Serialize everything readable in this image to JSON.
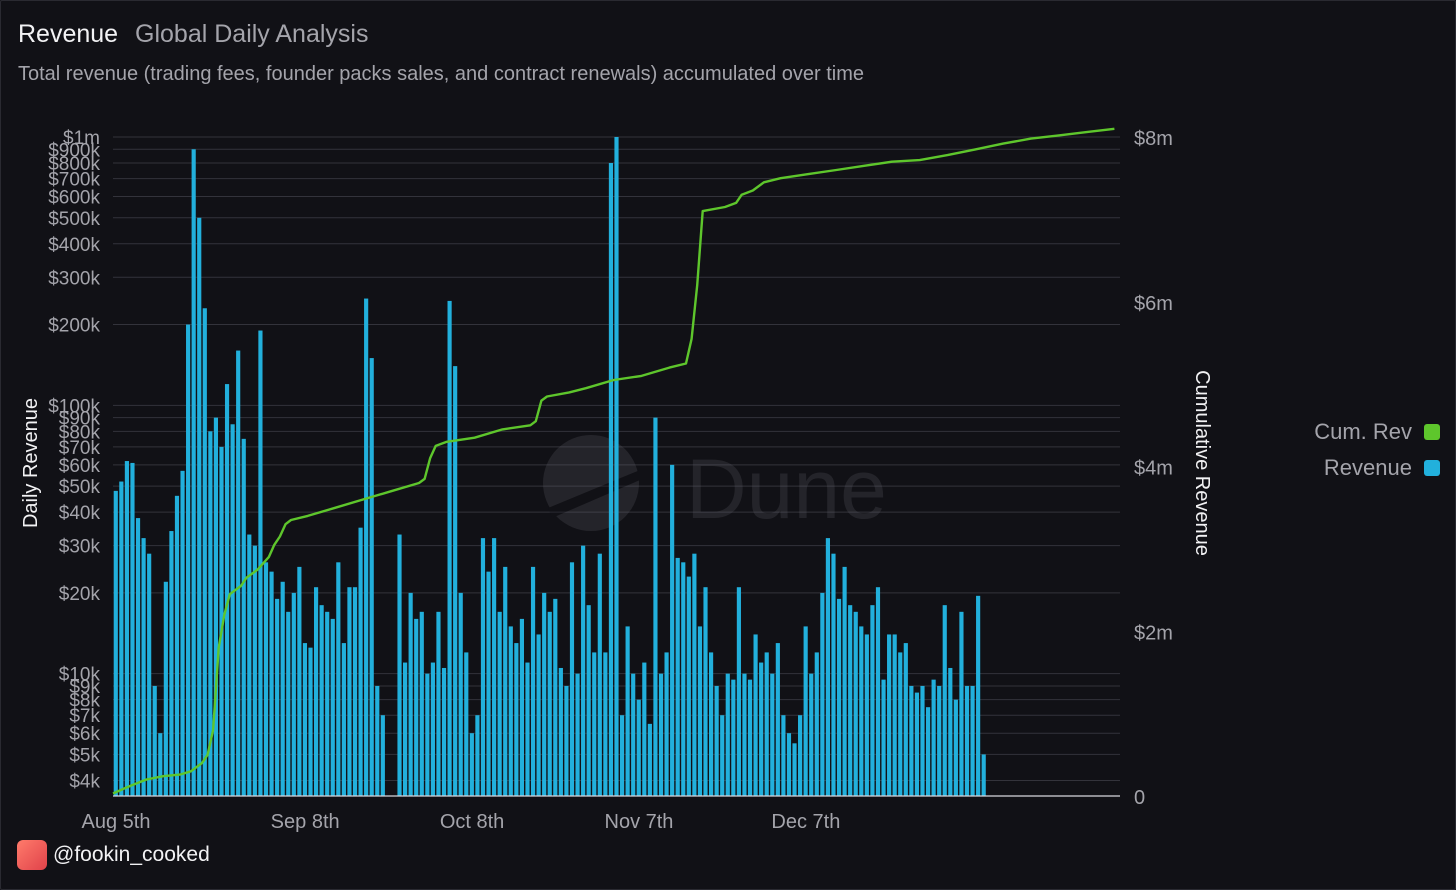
{
  "header": {
    "title": "Revenue",
    "subtitle": "Global Daily Analysis",
    "description": "Total revenue (trading fees, founder packs sales, and contract renewals) accumulated over time"
  },
  "credit": {
    "handle": "@fookin_cooked",
    "icon": "avatar-icon"
  },
  "watermark": {
    "text": "Dune",
    "icon": "dune-logo-icon"
  },
  "colors": {
    "background": "#111116",
    "bar": "#22b0dc",
    "line": "#5ec62c",
    "grid": "#33333b",
    "text": "#a4a4ab"
  },
  "chart_data": {
    "type": "bar",
    "title": "Revenue",
    "subtitle": "Global Daily Analysis",
    "x_tick_labels": [
      "Aug 5th",
      "Sep 8th",
      "Oct 8th",
      "Nov 7th",
      "Dec 7th"
    ],
    "x_tick_days": [
      0,
      34,
      64,
      94,
      124
    ],
    "left_axis": {
      "label": "Daily Revenue",
      "scale": "log",
      "range": [
        3500,
        1000000
      ],
      "ticks": [
        {
          "v": 4000,
          "l": "$4k"
        },
        {
          "v": 5000,
          "l": "$5k"
        },
        {
          "v": 6000,
          "l": "$6k"
        },
        {
          "v": 7000,
          "l": "$7k"
        },
        {
          "v": 8000,
          "l": "$8k"
        },
        {
          "v": 9000,
          "l": "$9k"
        },
        {
          "v": 10000,
          "l": "$10k"
        },
        {
          "v": 20000,
          "l": "$20k"
        },
        {
          "v": 30000,
          "l": "$30k"
        },
        {
          "v": 40000,
          "l": "$40k"
        },
        {
          "v": 50000,
          "l": "$50k"
        },
        {
          "v": 60000,
          "l": "$60k"
        },
        {
          "v": 70000,
          "l": "$70k"
        },
        {
          "v": 80000,
          "l": "$80k"
        },
        {
          "v": 90000,
          "l": "$90k"
        },
        {
          "v": 100000,
          "l": "$100k"
        },
        {
          "v": 200000,
          "l": "$200k"
        },
        {
          "v": 300000,
          "l": "$300k"
        },
        {
          "v": 400000,
          "l": "$400k"
        },
        {
          "v": 500000,
          "l": "$500k"
        },
        {
          "v": 600000,
          "l": "$600k"
        },
        {
          "v": 700000,
          "l": "$700k"
        },
        {
          "v": 800000,
          "l": "$800k"
        },
        {
          "v": 900000,
          "l": "$900k"
        },
        {
          "v": 1000000,
          "l": "$1m"
        }
      ]
    },
    "right_axis": {
      "label": "Cumulative Revenue",
      "scale": "linear",
      "range": [
        0,
        8000000
      ],
      "ticks": [
        {
          "v": 0,
          "l": "0"
        },
        {
          "v": 2000000,
          "l": "$2m"
        },
        {
          "v": 4000000,
          "l": "$4m"
        },
        {
          "v": 6000000,
          "l": "$6m"
        },
        {
          "v": 8000000,
          "l": "$8m"
        }
      ]
    },
    "grid": true,
    "legend_position": "right",
    "series": [
      {
        "name": "Cum. Rev",
        "type": "line",
        "axis": "right",
        "color": "#5ec62c",
        "points": [
          [
            0,
            30000
          ],
          [
            3,
            120000
          ],
          [
            6,
            200000
          ],
          [
            9,
            240000
          ],
          [
            12,
            260000
          ],
          [
            14,
            300000
          ],
          [
            16,
            400000
          ],
          [
            17,
            500000
          ],
          [
            18,
            800000
          ],
          [
            19,
            1800000
          ],
          [
            20,
            2200000
          ],
          [
            21,
            2450000
          ],
          [
            23,
            2550000
          ],
          [
            24,
            2650000
          ],
          [
            26,
            2750000
          ],
          [
            28,
            2900000
          ],
          [
            29,
            3050000
          ],
          [
            30,
            3150000
          ],
          [
            31,
            3300000
          ],
          [
            32,
            3350000
          ],
          [
            35,
            3400000
          ],
          [
            40,
            3500000
          ],
          [
            45,
            3600000
          ],
          [
            50,
            3700000
          ],
          [
            55,
            3800000
          ],
          [
            56,
            3850000
          ],
          [
            57,
            4100000
          ],
          [
            58,
            4250000
          ],
          [
            60,
            4300000
          ],
          [
            65,
            4350000
          ],
          [
            70,
            4450000
          ],
          [
            75,
            4500000
          ],
          [
            76,
            4550000
          ],
          [
            77,
            4800000
          ],
          [
            78,
            4850000
          ],
          [
            82,
            4900000
          ],
          [
            85,
            4950000
          ],
          [
            90,
            5050000
          ],
          [
            95,
            5100000
          ],
          [
            100,
            5200000
          ],
          [
            103,
            5250000
          ],
          [
            104,
            5550000
          ],
          [
            105,
            6200000
          ],
          [
            106,
            7100000
          ],
          [
            110,
            7150000
          ],
          [
            112,
            7200000
          ],
          [
            113,
            7300000
          ],
          [
            115,
            7350000
          ],
          [
            117,
            7450000
          ],
          [
            120,
            7500000
          ],
          [
            125,
            7550000
          ],
          [
            130,
            7600000
          ],
          [
            135,
            7650000
          ],
          [
            140,
            7700000
          ],
          [
            145,
            7720000
          ],
          [
            150,
            7780000
          ],
          [
            155,
            7850000
          ],
          [
            160,
            7920000
          ],
          [
            165,
            7980000
          ],
          [
            170,
            8020000
          ],
          [
            175,
            8060000
          ],
          [
            180,
            8100000
          ]
        ]
      },
      {
        "name": "Revenue",
        "type": "bar",
        "axis": "left",
        "color": "#22b0dc",
        "x_start_day": 0,
        "values": [
          48000,
          52000,
          62000,
          61000,
          38000,
          32000,
          28000,
          9000,
          6000,
          22000,
          34000,
          46000,
          57000,
          200000,
          900000,
          500000,
          230000,
          80000,
          90000,
          70000,
          120000,
          85000,
          160000,
          75000,
          33000,
          30000,
          190000,
          26000,
          24000,
          19000,
          22000,
          17000,
          20000,
          25000,
          13000,
          12500,
          21000,
          18000,
          17000,
          16000,
          26000,
          13000,
          21000,
          21000,
          35000,
          250000,
          150000,
          9000,
          7000,
          3500,
          3500,
          33000,
          11000,
          20000,
          16000,
          17000,
          10000,
          11000,
          17000,
          10500,
          245000,
          140000,
          20000,
          12000,
          6000,
          7000,
          32000,
          24000,
          32000,
          17000,
          25000,
          15000,
          13000,
          16000,
          11000,
          25000,
          14000,
          20000,
          17000,
          19000,
          10500,
          9000,
          26000,
          10000,
          30000,
          18000,
          12000,
          28000,
          12000,
          800000,
          1000000,
          7000,
          15000,
          10000,
          8000,
          11000,
          6500,
          90000,
          10000,
          12000,
          60000,
          27000,
          26000,
          23000,
          28000,
          15000,
          21000,
          12000,
          9000,
          7000,
          10000,
          9500,
          21000,
          10000,
          9500,
          14000,
          11000,
          12000,
          10000,
          13000,
          7000,
          6000,
          5500,
          7000,
          15000,
          10000,
          12000,
          20000,
          32000,
          28000,
          19000,
          25000,
          18000,
          17000,
          15000,
          14000,
          18000,
          21000,
          9500,
          14000,
          14000,
          12000,
          13000,
          9000,
          8500,
          9000,
          7500,
          9500,
          9000,
          18000,
          10500,
          8000,
          17000,
          9000,
          9000,
          19500,
          5000
        ]
      }
    ]
  }
}
